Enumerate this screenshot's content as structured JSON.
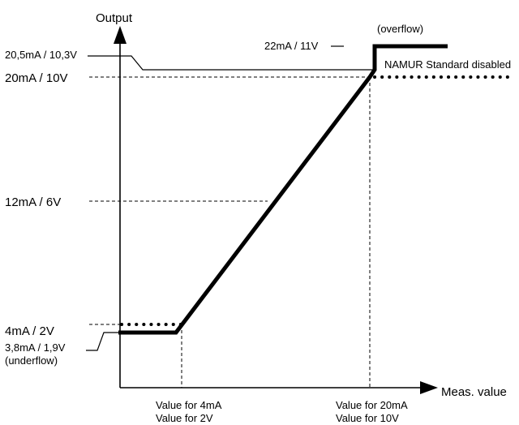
{
  "axes": {
    "y_label": "Output",
    "x_label": "Meas. value"
  },
  "y_levels": {
    "namur_high": "20,5mA / 10,3V",
    "full": "20mA / 10V",
    "mid": "12mA / 6V",
    "zero": "4mA / 2V",
    "underflow_value": "3,8mA / 1,9V",
    "underflow_word": "(underflow)"
  },
  "overflow": {
    "value": "22mA / 11V",
    "word": "(overflow)"
  },
  "namur_note": "NAMUR Standard disabled",
  "x_markers": {
    "low_line1": "Value for 4mA",
    "low_line2": "Value for 2V",
    "high_line1": "Value for 20mA",
    "high_line2": "Value for 10V"
  }
}
